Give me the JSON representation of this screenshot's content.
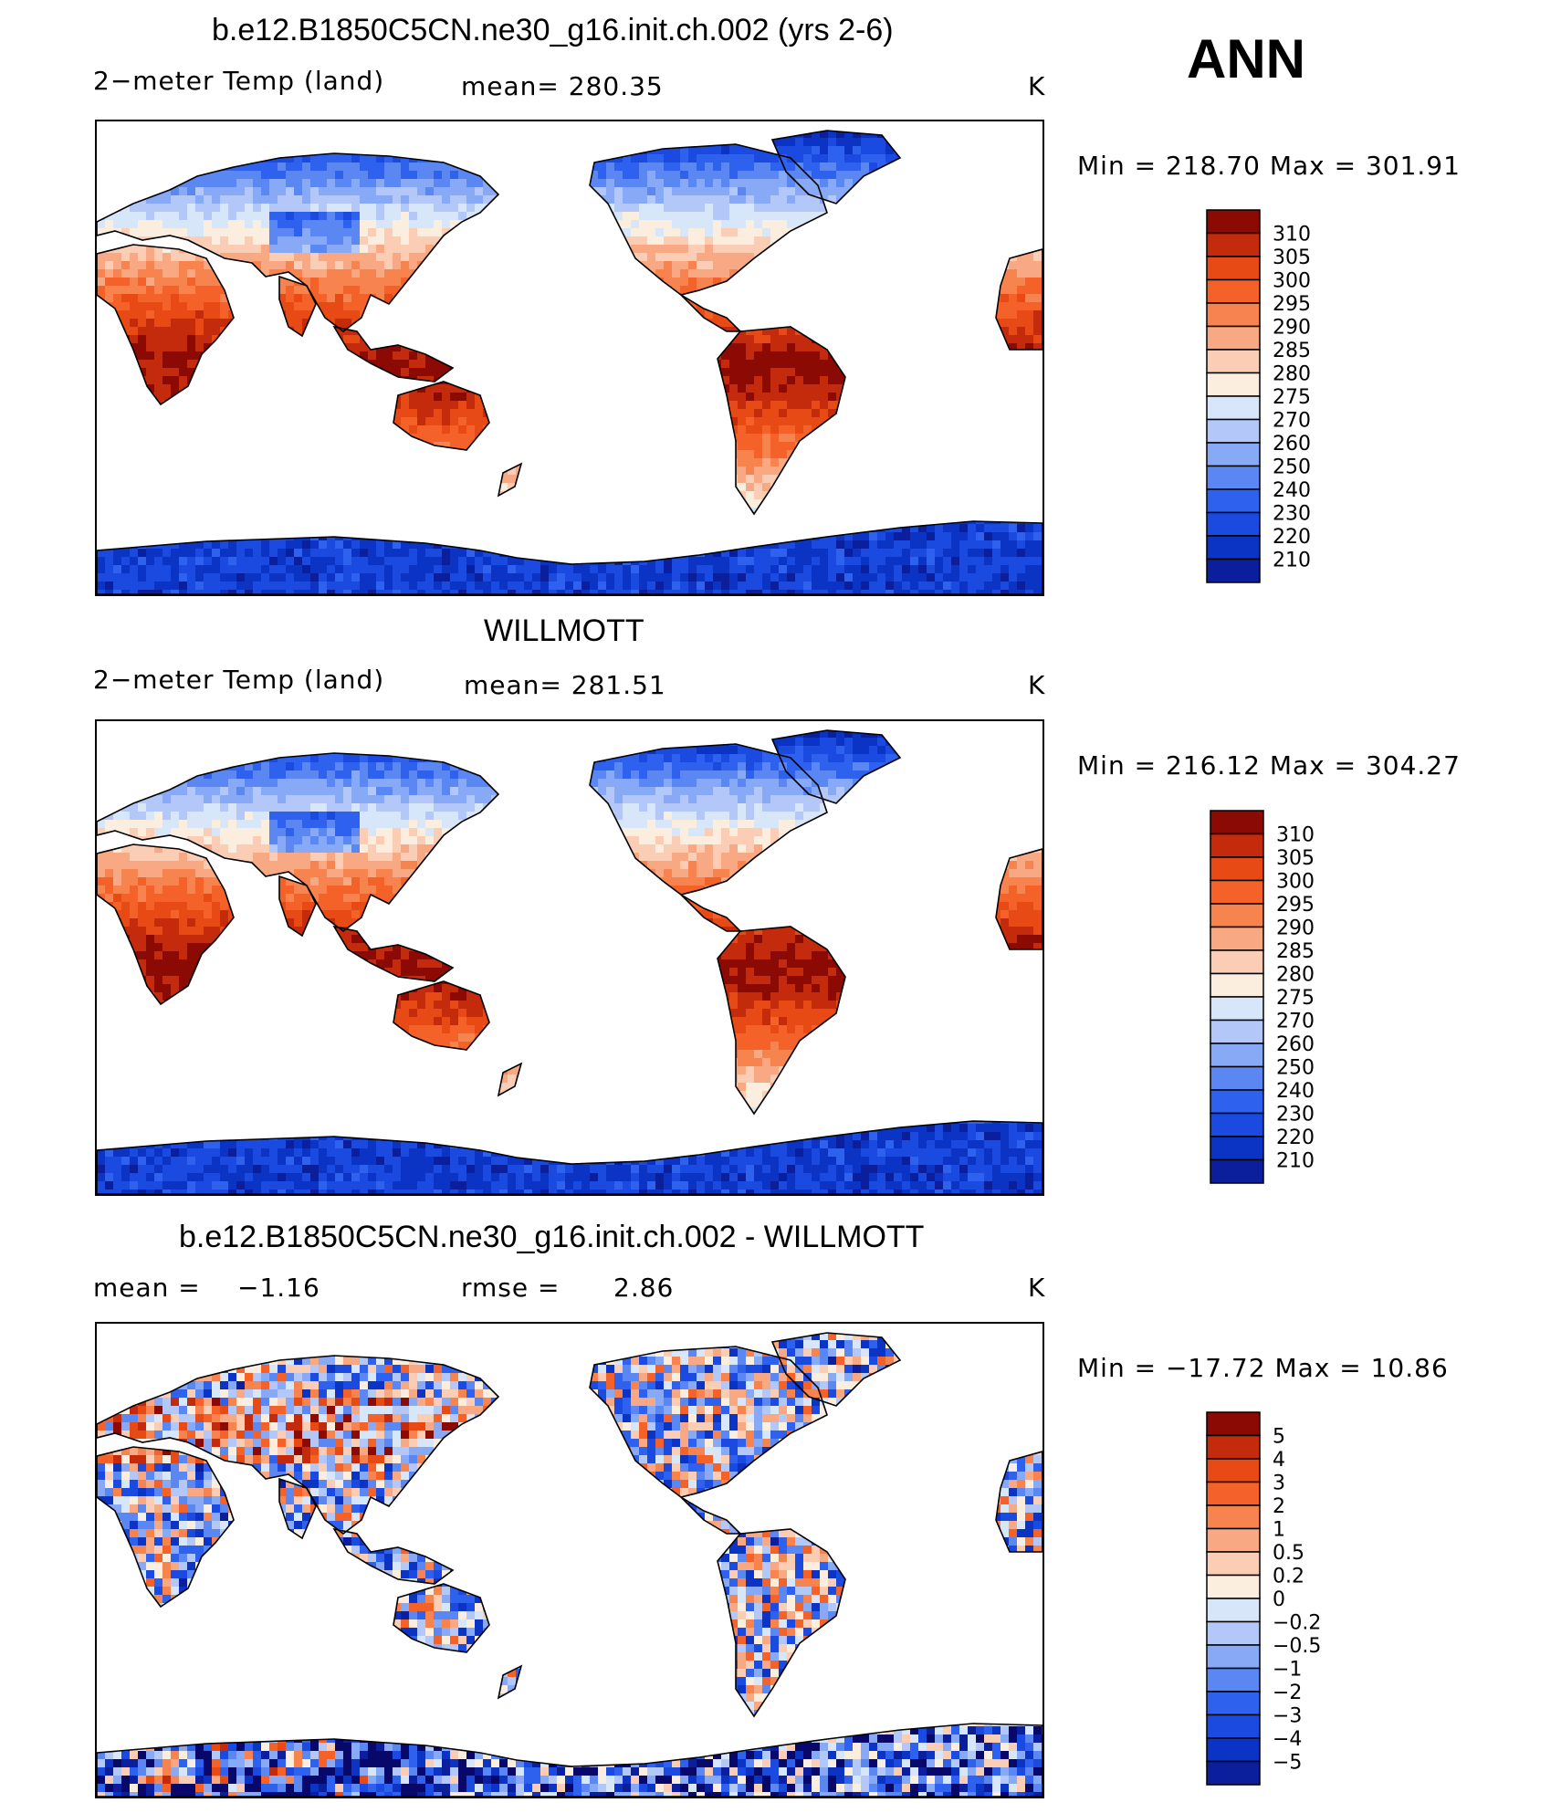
{
  "season": "ANN",
  "colors": {
    "temp": [
      "#08086b",
      "#0b1f9c",
      "#0b33c4",
      "#1a4ae0",
      "#2e62ee",
      "#5a87f2",
      "#88a9f6",
      "#b3c8f8",
      "#d8e6fa",
      "#fbeede",
      "#fbcdb4",
      "#f8a882",
      "#f7834f",
      "#f4622a",
      "#e84a16",
      "#c42a0c",
      "#8c0a04"
    ],
    "diff": [
      "#08086b",
      "#0b1f9c",
      "#0b33c4",
      "#1a4ae0",
      "#2e62ee",
      "#5a87f2",
      "#88a9f6",
      "#b3c8f8",
      "#d8e6fa",
      "#fbeede",
      "#fbcdb4",
      "#f8a882",
      "#f7834f",
      "#f4622a",
      "#e84a16",
      "#c42a0c",
      "#8c0a04"
    ]
  },
  "chart_data": [
    {
      "type": "heatmap",
      "title": "b.e12.B1850C5CN.ne30_g16.init.ch.002 (yrs 2-6)",
      "variable": "2−meter Temp (land)",
      "mean_text": "mean=  280.35",
      "units": "K",
      "minmax_text": "Min  =  218.70  Max  =  301.91",
      "min": 218.7,
      "max": 301.91,
      "mean": 280.35,
      "colorbar_levels": [
        "310",
        "305",
        "300",
        "295",
        "290",
        "285",
        "280",
        "275",
        "270",
        "260",
        "250",
        "240",
        "230",
        "220",
        "210"
      ]
    },
    {
      "type": "heatmap",
      "title": "WILLMOTT",
      "variable": "2−meter Temp (land)",
      "mean_text": "mean=  281.51",
      "units": "K",
      "minmax_text": "Min  =  216.12  Max  =  304.27",
      "min": 216.12,
      "max": 304.27,
      "mean": 281.51,
      "colorbar_levels": [
        "310",
        "305",
        "300",
        "295",
        "290",
        "285",
        "280",
        "275",
        "270",
        "260",
        "250",
        "240",
        "230",
        "220",
        "210"
      ]
    },
    {
      "type": "heatmap",
      "title": "b.e12.B1850C5CN.ne30_g16.init.ch.002 - WILLMOTT",
      "variable": "mean =",
      "mean_value": "−1.16",
      "rmse_label": "rmse =",
      "rmse_value": "2.86",
      "units": "K",
      "minmax_text": "Min  =  −17.72  Max  =    10.86",
      "min": -17.72,
      "max": 10.86,
      "mean": -1.16,
      "rmse": 2.86,
      "colorbar_levels": [
        "5",
        "4",
        "3",
        "2",
        "1",
        "0.5",
        "0.2",
        "0",
        "−0.2",
        "−0.5",
        "−1",
        "−2",
        "−3",
        "−4",
        "−5"
      ]
    }
  ]
}
